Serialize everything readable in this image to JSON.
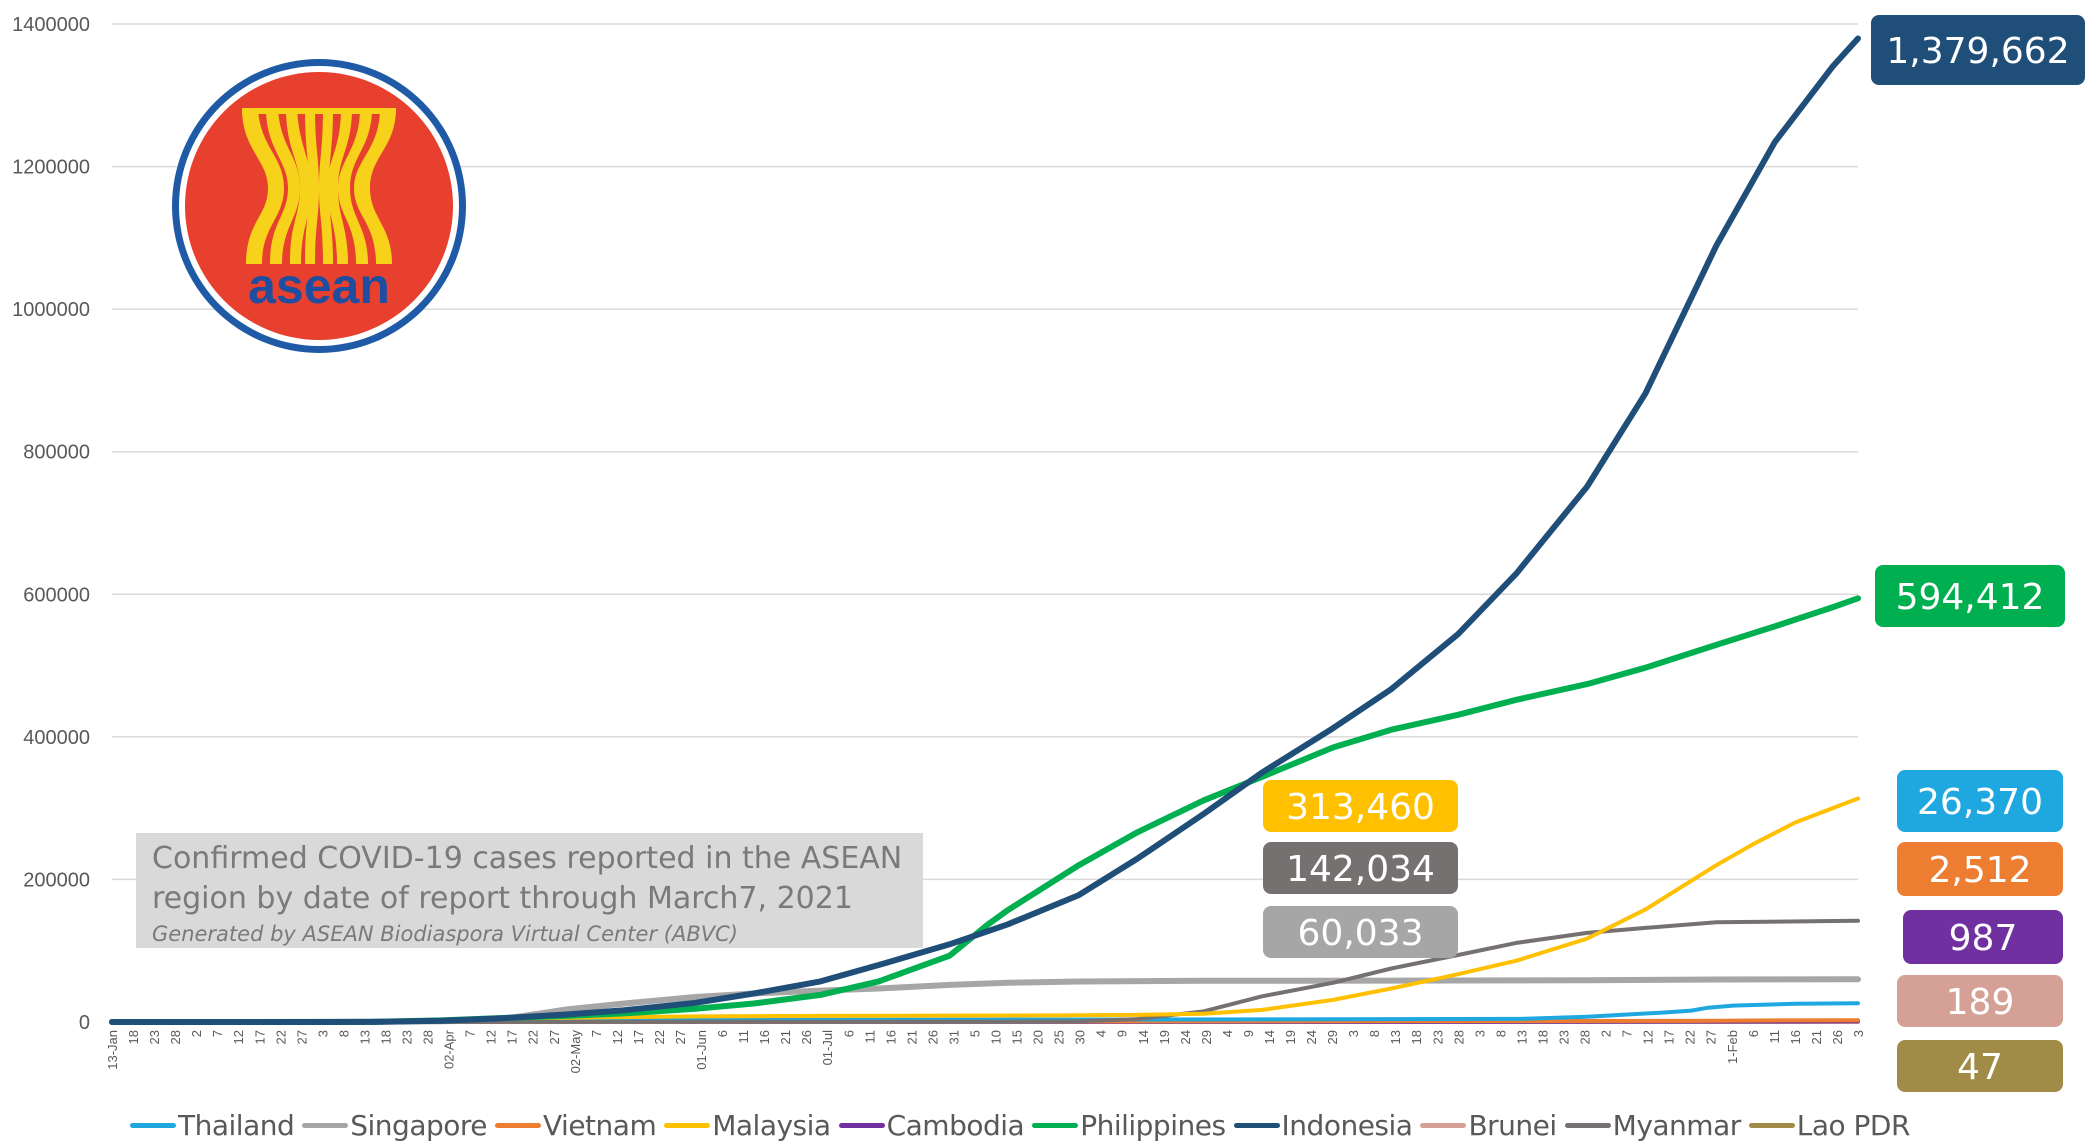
{
  "chart_data": {
    "type": "line",
    "title": "Confirmed COVID-19 cases reported in the ASEAN region by date of report through March7, 2021",
    "credit": "Generated by ASEAN Biodiaspora Virtual Center (ABVC)",
    "note_lines": [
      "Confirmed COVID-19 cases reported in the ASEAN",
      "region by date of report  through March7, 2021"
    ],
    "logo_text": "asean",
    "xlabel": "",
    "ylabel": "",
    "ylim": [
      0,
      1400000
    ],
    "yticks": [
      "0",
      "200000",
      "400000",
      "600000",
      "800000",
      "1000000",
      "1200000",
      "1400000"
    ],
    "x_range": [
      "2020-01-13",
      "2021-03-07"
    ],
    "x_tick_labels": [
      "13-Jan",
      "18",
      "23",
      "28",
      "2",
      "7",
      "12",
      "17",
      "22",
      "27",
      "3",
      "8",
      "13",
      "18",
      "23",
      "28",
      "02-Apr",
      "7",
      "12",
      "17",
      "22",
      "27",
      "02-May",
      "7",
      "12",
      "17",
      "22",
      "27",
      "01-Jun",
      "6",
      "11",
      "16",
      "21",
      "26",
      "01-Jul",
      "6",
      "11",
      "16",
      "21",
      "26",
      "31",
      "5",
      "10",
      "15",
      "20",
      "25",
      "30",
      "4",
      "9",
      "14",
      "19",
      "24",
      "29",
      "4",
      "9",
      "14",
      "19",
      "24",
      "29",
      "3",
      "8",
      "13",
      "18",
      "23",
      "28",
      "3",
      "8",
      "13",
      "18",
      "23",
      "28",
      "2",
      "7",
      "12",
      "17",
      "22",
      "27",
      "1-Feb",
      "6",
      "11",
      "16",
      "21",
      "26",
      "3"
    ],
    "grid": true,
    "legend_position": "bottom",
    "series": [
      {
        "name": "Thailand",
        "color": "#1fa8e0",
        "final": 26370,
        "callout": "26,370",
        "points": [
          [
            "2020-01-13",
            0
          ],
          [
            "2020-03-15",
            100
          ],
          [
            "2020-04-15",
            2700
          ],
          [
            "2020-06-01",
            3080
          ],
          [
            "2020-09-01",
            3420
          ],
          [
            "2020-11-01",
            3800
          ],
          [
            "2020-12-15",
            4300
          ],
          [
            "2020-12-20",
            5000
          ],
          [
            "2021-01-01",
            7400
          ],
          [
            "2021-01-20",
            13500
          ],
          [
            "2021-01-26",
            16000
          ],
          [
            "2021-01-30",
            20000
          ],
          [
            "2021-02-05",
            23000
          ],
          [
            "2021-02-20",
            25500
          ],
          [
            "2021-03-07",
            26370
          ]
        ]
      },
      {
        "name": "Singapore",
        "color": "#a6a6a6",
        "final": 60033,
        "callout": "60,033",
        "points": [
          [
            "2020-01-13",
            0
          ],
          [
            "2020-03-15",
            200
          ],
          [
            "2020-04-01",
            1000
          ],
          [
            "2020-04-10",
            2000
          ],
          [
            "2020-04-15",
            3700
          ],
          [
            "2020-04-20",
            8000
          ],
          [
            "2020-04-25",
            12000
          ],
          [
            "2020-05-01",
            17500
          ],
          [
            "2020-05-15",
            26000
          ],
          [
            "2020-06-01",
            35000
          ],
          [
            "2020-06-15",
            40000
          ],
          [
            "2020-07-01",
            44000
          ],
          [
            "2020-07-15",
            47000
          ],
          [
            "2020-08-01",
            52000
          ],
          [
            "2020-08-15",
            55000
          ],
          [
            "2020-09-01",
            56800
          ],
          [
            "2020-10-01",
            57800
          ],
          [
            "2020-12-01",
            58200
          ],
          [
            "2021-01-01",
            58600
          ],
          [
            "2021-02-01",
            59600
          ],
          [
            "2021-03-07",
            60033
          ]
        ]
      },
      {
        "name": "Vietnam",
        "color": "#ed7d31",
        "final": 2512,
        "callout": "2,512",
        "points": [
          [
            "2020-01-13",
            0
          ],
          [
            "2020-01-23",
            2
          ],
          [
            "2020-04-01",
            200
          ],
          [
            "2020-06-01",
            330
          ],
          [
            "2020-08-01",
            700
          ],
          [
            "2020-09-01",
            1040
          ],
          [
            "2020-12-01",
            1360
          ],
          [
            "2021-01-27",
            1600
          ],
          [
            "2021-02-10",
            2100
          ],
          [
            "2021-03-07",
            2512
          ]
        ]
      },
      {
        "name": "Malaysia",
        "color": "#ffc000",
        "final": 313460,
        "callout": "313,460",
        "points": [
          [
            "2020-01-13",
            0
          ],
          [
            "2020-03-01",
            30
          ],
          [
            "2020-03-15",
            428
          ],
          [
            "2020-04-01",
            2900
          ],
          [
            "2020-04-15",
            5000
          ],
          [
            "2020-05-01",
            6100
          ],
          [
            "2020-06-01",
            7800
          ],
          [
            "2020-07-01",
            8600
          ],
          [
            "2020-09-01",
            9400
          ],
          [
            "2020-09-15",
            10000
          ],
          [
            "2020-10-01",
            11500
          ],
          [
            "2020-10-15",
            17000
          ],
          [
            "2020-11-01",
            31000
          ],
          [
            "2020-11-15",
            47000
          ],
          [
            "2020-12-01",
            67000
          ],
          [
            "2020-12-15",
            86000
          ],
          [
            "2021-01-01",
            117000
          ],
          [
            "2021-01-15",
            158000
          ],
          [
            "2021-02-01",
            220000
          ],
          [
            "2021-02-10",
            250000
          ],
          [
            "2021-02-20",
            280000
          ],
          [
            "2021-03-07",
            313460
          ]
        ]
      },
      {
        "name": "Cambodia",
        "color": "#7030a0",
        "final": 987,
        "callout": "987",
        "points": [
          [
            "2020-01-13",
            0
          ],
          [
            "2020-03-15",
            10
          ],
          [
            "2020-04-15",
            120
          ],
          [
            "2020-08-01",
            240
          ],
          [
            "2020-12-01",
            350
          ],
          [
            "2021-02-20",
            700
          ],
          [
            "2021-03-07",
            987
          ]
        ]
      },
      {
        "name": "Philippines",
        "color": "#00b050",
        "final": 594412,
        "callout": "594,412",
        "points": [
          [
            "2020-01-13",
            0
          ],
          [
            "2020-03-15",
            140
          ],
          [
            "2020-04-01",
            2300
          ],
          [
            "2020-04-15",
            5500
          ],
          [
            "2020-05-01",
            8500
          ],
          [
            "2020-05-15",
            12000
          ],
          [
            "2020-06-01",
            18600
          ],
          [
            "2020-06-15",
            26000
          ],
          [
            "2020-07-01",
            38000
          ],
          [
            "2020-07-15",
            57000
          ],
          [
            "2020-08-01",
            93000
          ],
          [
            "2020-08-10",
            136000
          ],
          [
            "2020-08-15",
            157000
          ],
          [
            "2020-09-01",
            220000
          ],
          [
            "2020-09-15",
            266000
          ],
          [
            "2020-10-01",
            311000
          ],
          [
            "2020-10-15",
            344000
          ],
          [
            "2020-11-01",
            385000
          ],
          [
            "2020-11-15",
            410000
          ],
          [
            "2020-12-01",
            431000
          ],
          [
            "2020-12-15",
            452000
          ],
          [
            "2021-01-01",
            474000
          ],
          [
            "2021-01-15",
            497000
          ],
          [
            "2021-02-01",
            529000
          ],
          [
            "2021-02-15",
            555000
          ],
          [
            "2021-03-01",
            582000
          ],
          [
            "2021-03-07",
            594412
          ]
        ]
      },
      {
        "name": "Indonesia",
        "color": "#1f4e79",
        "final": 1379662,
        "callout": "1,379,662",
        "points": [
          [
            "2020-01-13",
            0
          ],
          [
            "2020-03-02",
            2
          ],
          [
            "2020-03-15",
            117
          ],
          [
            "2020-04-01",
            1700
          ],
          [
            "2020-04-15",
            5100
          ],
          [
            "2020-05-01",
            10500
          ],
          [
            "2020-05-15",
            16500
          ],
          [
            "2020-06-01",
            27000
          ],
          [
            "2020-06-15",
            40000
          ],
          [
            "2020-07-01",
            57000
          ],
          [
            "2020-07-15",
            80000
          ],
          [
            "2020-08-01",
            109000
          ],
          [
            "2020-08-15",
            137000
          ],
          [
            "2020-09-01",
            178000
          ],
          [
            "2020-09-15",
            229000
          ],
          [
            "2020-10-01",
            292000
          ],
          [
            "2020-10-15",
            350000
          ],
          [
            "2020-11-01",
            412000
          ],
          [
            "2020-11-15",
            467000
          ],
          [
            "2020-12-01",
            544000
          ],
          [
            "2020-12-15",
            629000
          ],
          [
            "2021-01-01",
            751000
          ],
          [
            "2021-01-15",
            882000
          ],
          [
            "2021-02-01",
            1089000
          ],
          [
            "2021-02-15",
            1234000
          ],
          [
            "2021-03-01",
            1341000
          ],
          [
            "2021-03-07",
            1379662
          ]
        ]
      },
      {
        "name": "Brunei",
        "color": "#d5a096",
        "final": 189,
        "callout": "189",
        "points": [
          [
            "2020-01-13",
            0
          ],
          [
            "2020-03-15",
            50
          ],
          [
            "2020-04-15",
            136
          ],
          [
            "2020-12-01",
            150
          ],
          [
            "2021-03-07",
            189
          ]
        ]
      },
      {
        "name": "Myanmar",
        "color": "#767171",
        "final": 142034,
        "callout": "142,034",
        "points": [
          [
            "2020-01-13",
            0
          ],
          [
            "2020-03-25",
            5
          ],
          [
            "2020-06-01",
            230
          ],
          [
            "2020-08-15",
            400
          ],
          [
            "2020-09-01",
            1000
          ],
          [
            "2020-09-15",
            4000
          ],
          [
            "2020-10-01",
            15000
          ],
          [
            "2020-10-15",
            36000
          ],
          [
            "2020-11-01",
            55000
          ],
          [
            "2020-11-15",
            75000
          ],
          [
            "2020-12-01",
            94000
          ],
          [
            "2020-12-15",
            111000
          ],
          [
            "2021-01-01",
            125000
          ],
          [
            "2021-01-15",
            132000
          ],
          [
            "2021-02-01",
            140000
          ],
          [
            "2021-03-07",
            142034
          ]
        ]
      },
      {
        "name": "Lao PDR",
        "color": "#a08b47",
        "final": 47,
        "callout": "47",
        "points": [
          [
            "2020-01-13",
            0
          ],
          [
            "2020-03-24",
            2
          ],
          [
            "2020-05-01",
            19
          ],
          [
            "2020-12-01",
            41
          ],
          [
            "2021-03-07",
            47
          ]
        ]
      }
    ]
  }
}
